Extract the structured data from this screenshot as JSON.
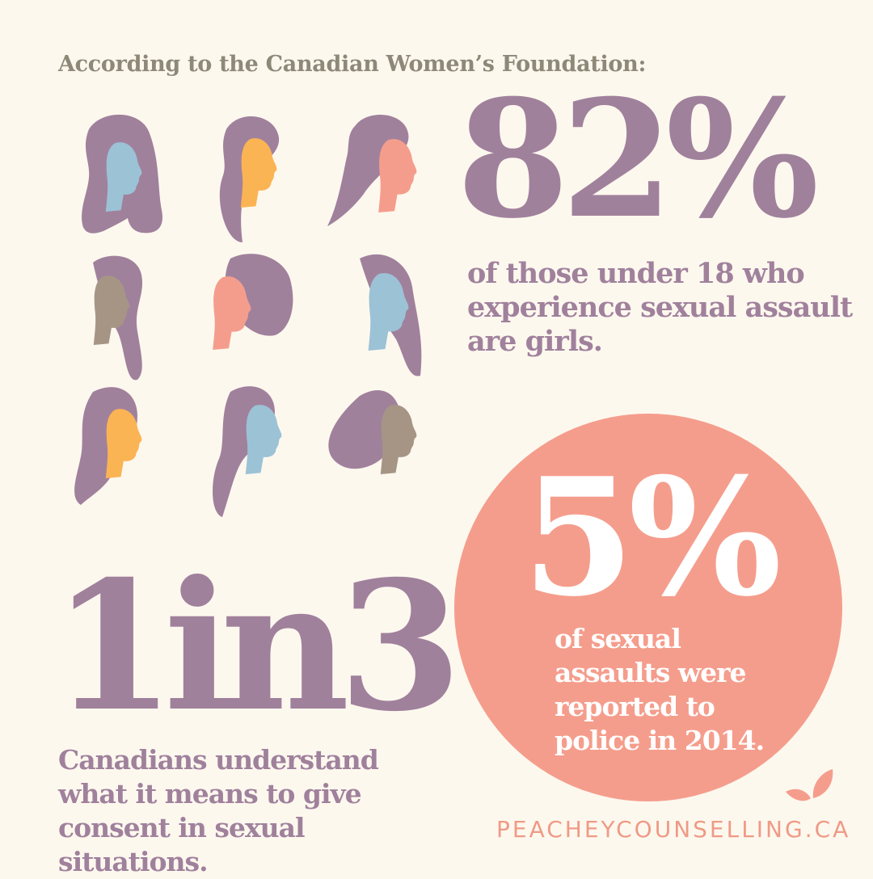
{
  "header": {
    "text": "According to the Canadian Women’s Foundation:"
  },
  "illustration": {
    "icon": "women-profiles-icon",
    "palette": {
      "purple": "#a0819c",
      "blue": "#9cc2d6",
      "orange": "#fbb454",
      "pink": "#f59d8c",
      "taupe": "#a69585"
    }
  },
  "stats": [
    {
      "value": "82%",
      "description": "of those under 18 who experience sexual assault are girls."
    },
    {
      "value": "5%",
      "description": "of sexual assaults were reported to police in 2014."
    },
    {
      "value": "1in3",
      "description": "Canadians understand what it means to give consent in sexual situations."
    }
  ],
  "branding": {
    "url": "PEACHEYCOUNSELLING.CA",
    "logo_icon": "peach-leaves-icon"
  },
  "colors": {
    "background": "#fdf8ee",
    "accent_purple": "#a0819c",
    "accent_peach": "#f59d8c",
    "header_gray": "#8e8878",
    "brand_text": "#ef9a86"
  }
}
